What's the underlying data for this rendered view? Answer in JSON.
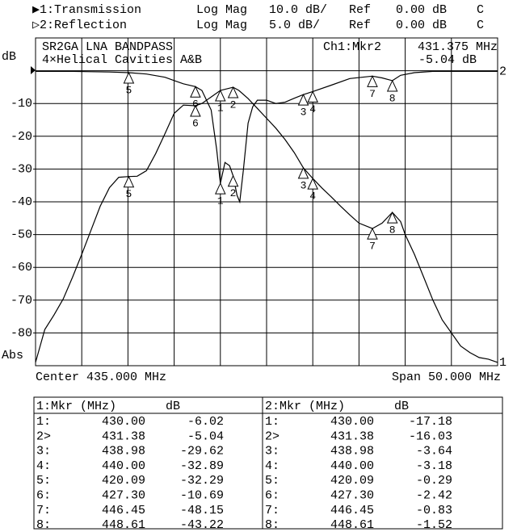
{
  "header": {
    "rows": [
      [
        "▶1:Transmission",
        "Log Mag",
        "10.0 dB/",
        "Ref",
        "0.00 dB",
        "C"
      ],
      [
        "▷2:Reflection",
        "Log Mag",
        "5.0 dB/",
        "Ref",
        "0.00 dB",
        "C"
      ]
    ]
  },
  "chart_data": {
    "type": "line",
    "title": "SR2GA LNA BANDPASS",
    "subtitle": "4×Helical Cavities A&B",
    "readout": [
      "Ch1:Mkr2",
      "431.375 MHz",
      "-5.04 dB"
    ],
    "ylabel": "dB",
    "format": "Abs",
    "x_center": "Center 435.000 MHz",
    "x_span": "Span 50.000 MHz",
    "xlim": [
      410,
      460
    ],
    "ylim": [
      -90,
      10
    ],
    "y2lim": [
      -45,
      5
    ],
    "yticks": [
      -10,
      -20,
      -30,
      -40,
      -50,
      -60,
      -70,
      -80
    ],
    "series": [
      {
        "name": "1",
        "color": "#000000",
        "x": [
          410,
          410.5,
          411,
          412,
          413,
          414,
          415,
          416,
          417,
          418,
          419,
          420.09,
          421,
          422,
          423,
          424,
          425,
          426,
          427.3,
          428,
          429,
          430,
          431.38,
          432,
          433,
          434,
          435,
          436,
          437,
          438,
          438.98,
          440,
          441,
          442,
          443,
          444,
          445,
          446.45,
          447.5,
          448.61,
          449.5,
          450,
          451,
          452,
          453,
          454,
          455,
          456,
          457,
          458,
          459,
          460
        ],
        "values": [
          -89,
          -84,
          -79,
          -74.5,
          -69.6,
          -63,
          -56,
          -48.7,
          -41.3,
          -35.7,
          -32.5,
          -32.29,
          -32.2,
          -30.5,
          -25.3,
          -19.2,
          -13,
          -10.5,
          -10.69,
          -10,
          -8,
          -6.02,
          -5.04,
          -6,
          -8.5,
          -11.5,
          -14.5,
          -17.5,
          -21,
          -25,
          -29.62,
          -32.89,
          -35.8,
          -38.5,
          -41.3,
          -44,
          -46.5,
          -48.15,
          -46.5,
          -43.22,
          -46,
          -50,
          -56,
          -63,
          -70,
          -76,
          -80,
          -84,
          -86,
          -87.5,
          -88,
          -89
        ]
      },
      {
        "name": "2",
        "color": "#000000",
        "axis": "y2",
        "x": [
          410,
          412,
          414,
          416,
          418,
          420.09,
          422,
          424,
          425,
          426,
          427.3,
          428,
          429,
          429.6,
          430,
          430.5,
          431,
          431.38,
          431.8,
          432.1,
          432.5,
          433,
          433.5,
          434,
          435,
          436,
          437,
          438,
          438.98,
          440,
          442,
          444,
          446.45,
          447.5,
          448.61,
          449.5,
          451,
          453,
          455,
          457,
          460
        ],
        "values": [
          -0.1,
          -0.1,
          -0.1,
          -0.15,
          -0.2,
          -0.29,
          -0.5,
          -1,
          -1.5,
          -2,
          -2.42,
          -3,
          -6,
          -12,
          -17.18,
          -14,
          -14.5,
          -16.03,
          -19,
          -20,
          -15,
          -8,
          -5.5,
          -4.5,
          -4.5,
          -5,
          -4.8,
          -4.2,
          -3.64,
          -3.18,
          -2.2,
          -1.2,
          -0.83,
          -1.1,
          -1.52,
          -0.7,
          -0.3,
          -0.1,
          -0.1,
          -0.1,
          -0.1
        ]
      }
    ],
    "markers": [
      {
        "label": "1",
        "freq": 430.0,
        "trans": -6.02,
        "refl": -17.18
      },
      {
        "label": "2",
        "freq": 431.38,
        "trans": -5.04,
        "refl": -16.03
      },
      {
        "label": "3",
        "freq": 438.98,
        "trans": -29.62,
        "refl": -3.64
      },
      {
        "label": "4",
        "freq": 440.0,
        "trans": -32.89,
        "refl": -3.18
      },
      {
        "label": "5",
        "freq": 420.09,
        "trans": -32.29,
        "refl": -0.29
      },
      {
        "label": "6",
        "freq": 427.3,
        "trans": -10.69,
        "refl": -2.42
      },
      {
        "label": "7",
        "freq": 446.45,
        "trans": -48.15,
        "refl": -0.83
      },
      {
        "label": "8",
        "freq": 448.61,
        "trans": -43.22,
        "refl": -1.52
      }
    ]
  },
  "table": {
    "left": {
      "header": [
        "1:Mkr (MHz)",
        "dB"
      ],
      "rows": [
        [
          "1:",
          "430.00",
          "-6.02"
        ],
        [
          "2>",
          "431.38",
          "-5.04"
        ],
        [
          "3:",
          "438.98",
          "-29.62"
        ],
        [
          "4:",
          "440.00",
          "-32.89"
        ],
        [
          "5:",
          "420.09",
          "-32.29"
        ],
        [
          "6:",
          "427.30",
          "-10.69"
        ],
        [
          "7:",
          "446.45",
          "-48.15"
        ],
        [
          "8:",
          "448.61",
          "-43.22"
        ]
      ]
    },
    "right": {
      "header": [
        "2:Mkr (MHz)",
        "dB"
      ],
      "rows": [
        [
          "1:",
          "430.00",
          "-17.18"
        ],
        [
          "2>",
          "431.38",
          "-16.03"
        ],
        [
          "3:",
          "438.98",
          "-3.64"
        ],
        [
          "4:",
          "440.00",
          "-3.18"
        ],
        [
          "5:",
          "420.09",
          "-0.29"
        ],
        [
          "6:",
          "427.30",
          "-2.42"
        ],
        [
          "7:",
          "446.45",
          "-0.83"
        ],
        [
          "8:",
          "448.61",
          "-1.52"
        ]
      ]
    }
  }
}
